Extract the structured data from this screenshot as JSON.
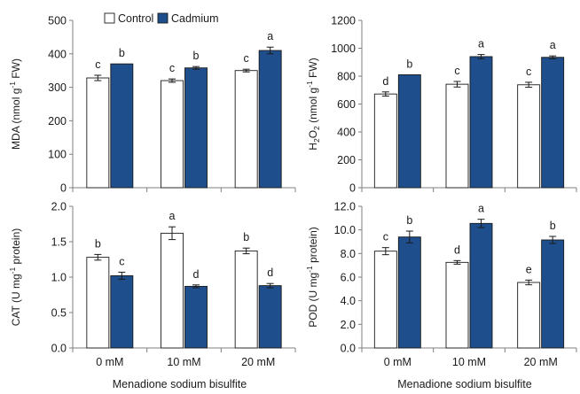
{
  "legend": {
    "items": [
      {
        "label": "Control",
        "color": "#ffffff"
      },
      {
        "label": "Cadmium",
        "color": "#1f4e8c"
      }
    ]
  },
  "colors": {
    "control": "#ffffff",
    "cadmium": "#1f4e8c",
    "axis": "#7f7f7f",
    "text": "#1a1a1a"
  },
  "chart_data": [
    {
      "type": "bar",
      "ylabel_main": "MDA (nmol g",
      "ylabel_sup": "-1",
      "ylabel_end": " FW)",
      "ylim": [
        0,
        500
      ],
      "yticks": [
        "0",
        "100",
        "200",
        "300",
        "400",
        "500"
      ],
      "categories": [
        "0 mM",
        "10 mM",
        "20 mM"
      ],
      "show_xticks": false,
      "xlabel": "",
      "series": [
        {
          "name": "Control",
          "values": [
            328,
            320,
            350
          ],
          "errors": [
            8,
            5,
            4
          ],
          "letters": [
            "c",
            "c",
            "c"
          ]
        },
        {
          "name": "Cadmium",
          "values": [
            370,
            358,
            410
          ],
          "errors": [
            0,
            4,
            10
          ],
          "letters": [
            "b",
            "b",
            "a"
          ]
        }
      ]
    },
    {
      "type": "bar",
      "ylabel_main": "H",
      "ylabel_sub1": "2",
      "ylabel_mid": "O",
      "ylabel_sub2": "2",
      "ylabel_end": " (nmol g",
      "ylabel_sup": "-1",
      "ylabel_end2": " FW)",
      "ylim": [
        0,
        1200
      ],
      "yticks": [
        "0",
        "200",
        "400",
        "600",
        "800",
        "1000",
        "1200"
      ],
      "categories": [
        "0 mM",
        "10 mM",
        "20 mM"
      ],
      "show_xticks": false,
      "xlabel": "",
      "series": [
        {
          "name": "Control",
          "values": [
            672,
            742,
            738
          ],
          "errors": [
            15,
            20,
            18
          ],
          "letters": [
            "d",
            "c",
            "c"
          ]
        },
        {
          "name": "Cadmium",
          "values": [
            810,
            940,
            935
          ],
          "errors": [
            0,
            15,
            10
          ],
          "letters": [
            "b",
            "a",
            "a"
          ]
        }
      ]
    },
    {
      "type": "bar",
      "ylabel_main": "CAT (U mg",
      "ylabel_sup": "-1",
      "ylabel_end": " protein)",
      "ylim": [
        0,
        2.0
      ],
      "yticks": [
        "0.0",
        "0.5",
        "1.0",
        "1.5",
        "2.0"
      ],
      "categories": [
        "0 mM",
        "10 mM",
        "20 mM"
      ],
      "show_xticks": true,
      "xlabel": "Menadione sodium bisulfite",
      "series": [
        {
          "name": "Control",
          "values": [
            1.28,
            1.62,
            1.37
          ],
          "errors": [
            0.04,
            0.09,
            0.04
          ],
          "letters": [
            "b",
            "a",
            "b"
          ]
        },
        {
          "name": "Cadmium",
          "values": [
            1.02,
            0.87,
            0.88
          ],
          "errors": [
            0.05,
            0.02,
            0.03
          ],
          "letters": [
            "c",
            "d",
            "d"
          ]
        }
      ]
    },
    {
      "type": "bar",
      "ylabel_main": "POD (U mg",
      "ylabel_sup": "-1",
      "ylabel_end": " protein)",
      "ylim": [
        0,
        12.0
      ],
      "yticks": [
        "0.0",
        "2.0",
        "4.0",
        "6.0",
        "8.0",
        "10.0",
        "12.0"
      ],
      "categories": [
        "0 mM",
        "10 mM",
        "20 mM"
      ],
      "show_xticks": true,
      "xlabel": "Menadione sodium bisulfite",
      "series": [
        {
          "name": "Control",
          "values": [
            8.2,
            7.25,
            5.55
          ],
          "errors": [
            0.3,
            0.15,
            0.2
          ],
          "letters": [
            "c",
            "d",
            "e"
          ]
        },
        {
          "name": "Cadmium",
          "values": [
            9.4,
            10.55,
            9.15
          ],
          "errors": [
            0.5,
            0.35,
            0.3
          ],
          "letters": [
            "b",
            "a",
            "b"
          ]
        }
      ]
    }
  ]
}
